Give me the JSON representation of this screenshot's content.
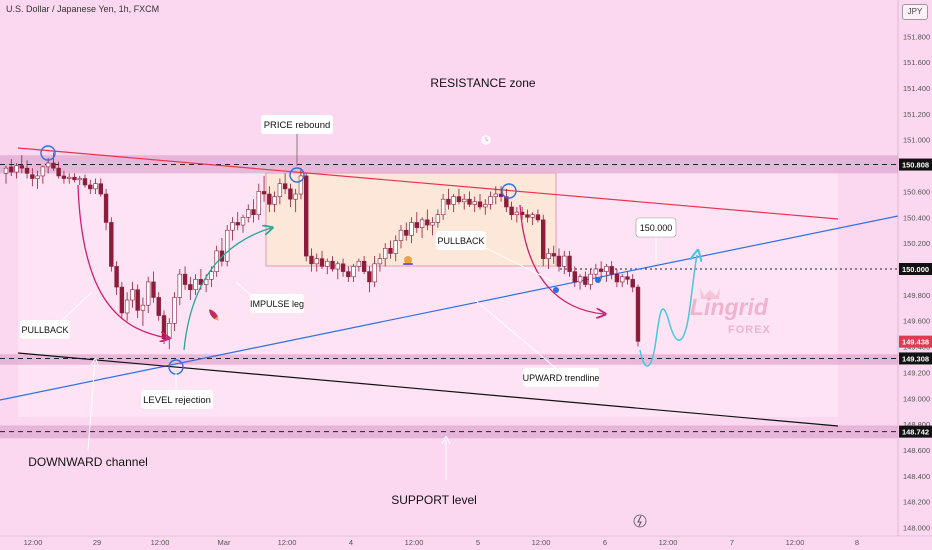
{
  "header": {
    "symbol": "U.S. Dollar / Japanese Yen, 1h, FXCM",
    "currency": "JPY"
  },
  "chart_data": {
    "type": "candlestick",
    "ylim": [
      147.95,
      152.05
    ],
    "y_ticks": [
      "151.800",
      "151.600",
      "151.400",
      "151.200",
      "151.000",
      "150.800",
      "150.600",
      "150.400",
      "150.200",
      "150.000",
      "149.800",
      "149.600",
      "149.400",
      "149.200",
      "149.000",
      "148.800",
      "148.600",
      "148.400",
      "148.200",
      "148.000"
    ],
    "x_ticks": [
      "12:00",
      "29",
      "12:00",
      "Mar",
      "12:00",
      "4",
      "12:00",
      "5",
      "12:00",
      "6",
      "12:00",
      "7",
      "12:00",
      "8"
    ],
    "price_tags": [
      {
        "label": "150.808",
        "value": 150.808,
        "color": "#111111"
      },
      {
        "label": "150.000",
        "value": 150.0,
        "color": "#111111"
      },
      {
        "label": "149.438",
        "value": 149.438,
        "color": "#e03a52"
      },
      {
        "label": "149.308",
        "value": 149.308,
        "color": "#111111"
      },
      {
        "label": "148.742",
        "value": 148.742,
        "color": "#111111"
      }
    ],
    "candles": [
      [
        150.74,
        150.8,
        150.66,
        150.78
      ],
      [
        150.79,
        150.85,
        150.72,
        150.75
      ],
      [
        150.75,
        150.82,
        150.7,
        150.8
      ],
      [
        150.8,
        150.88,
        150.74,
        150.78
      ],
      [
        150.78,
        150.84,
        150.7,
        150.74
      ],
      [
        150.73,
        150.78,
        150.64,
        150.7
      ],
      [
        150.7,
        150.76,
        150.62,
        150.72
      ],
      [
        150.72,
        150.8,
        150.66,
        150.79
      ],
      [
        150.79,
        150.86,
        150.74,
        150.82
      ],
      [
        150.82,
        150.9,
        150.76,
        150.78
      ],
      [
        150.78,
        150.83,
        150.7,
        150.72
      ],
      [
        150.72,
        150.76,
        150.66,
        150.7
      ],
      [
        150.7,
        150.74,
        150.66,
        150.71
      ],
      [
        150.71,
        150.74,
        150.67,
        150.69
      ],
      [
        150.69,
        150.72,
        150.65,
        150.7
      ],
      [
        150.7,
        150.73,
        150.63,
        150.65
      ],
      [
        150.65,
        150.69,
        150.58,
        150.62
      ],
      [
        150.62,
        150.7,
        150.58,
        150.66
      ],
      [
        150.66,
        150.7,
        150.56,
        150.58
      ],
      [
        150.58,
        150.62,
        150.3,
        150.36
      ],
      [
        150.36,
        150.4,
        149.98,
        150.02
      ],
      [
        150.02,
        150.06,
        149.8,
        149.86
      ],
      [
        149.86,
        149.9,
        149.62,
        149.66
      ],
      [
        149.66,
        149.82,
        149.6,
        149.76
      ],
      [
        149.76,
        149.9,
        149.7,
        149.84
      ],
      [
        149.84,
        149.88,
        149.62,
        149.68
      ],
      [
        149.68,
        149.78,
        149.56,
        149.72
      ],
      [
        149.72,
        149.94,
        149.66,
        149.9
      ],
      [
        149.9,
        149.98,
        149.74,
        149.78
      ],
      [
        149.78,
        149.82,
        149.6,
        149.64
      ],
      [
        149.64,
        149.68,
        149.42,
        149.46
      ],
      [
        149.46,
        149.62,
        149.38,
        149.58
      ],
      [
        149.58,
        149.82,
        149.52,
        149.78
      ],
      [
        149.78,
        150.0,
        149.72,
        149.96
      ],
      [
        149.96,
        150.02,
        149.84,
        149.88
      ],
      [
        149.88,
        149.94,
        149.76,
        149.84
      ],
      [
        149.84,
        149.96,
        149.8,
        149.92
      ],
      [
        149.92,
        150.0,
        149.84,
        149.88
      ],
      [
        149.88,
        149.96,
        149.82,
        149.92
      ],
      [
        149.92,
        150.02,
        149.86,
        149.98
      ],
      [
        149.98,
        150.18,
        149.94,
        150.14
      ],
      [
        150.14,
        150.24,
        150.02,
        150.06
      ],
      [
        150.06,
        150.34,
        150.02,
        150.3
      ],
      [
        150.3,
        150.4,
        150.22,
        150.36
      ],
      [
        150.36,
        150.44,
        150.3,
        150.34
      ],
      [
        150.34,
        150.42,
        150.28,
        150.4
      ],
      [
        150.4,
        150.5,
        150.36,
        150.46
      ],
      [
        150.46,
        150.54,
        150.36,
        150.42
      ],
      [
        150.42,
        150.66,
        150.38,
        150.6
      ],
      [
        150.6,
        150.72,
        150.52,
        150.58
      ],
      [
        150.58,
        150.64,
        150.44,
        150.5
      ],
      [
        150.5,
        150.6,
        150.44,
        150.56
      ],
      [
        150.56,
        150.7,
        150.5,
        150.66
      ],
      [
        150.66,
        150.74,
        150.58,
        150.62
      ],
      [
        150.62,
        150.66,
        150.48,
        150.54
      ],
      [
        150.54,
        150.62,
        150.44,
        150.58
      ],
      [
        150.58,
        150.78,
        150.54,
        150.72
      ],
      [
        150.72,
        150.74,
        150.06,
        150.1
      ],
      [
        150.1,
        150.16,
        149.98,
        150.04
      ],
      [
        150.04,
        150.12,
        149.98,
        150.08
      ],
      [
        150.08,
        150.14,
        150.0,
        150.02
      ],
      [
        150.02,
        150.08,
        149.96,
        150.06
      ],
      [
        150.06,
        150.1,
        149.98,
        150.0
      ],
      [
        150.0,
        150.06,
        149.92,
        150.04
      ],
      [
        150.04,
        150.08,
        149.94,
        149.98
      ],
      [
        149.98,
        150.02,
        149.9,
        149.94
      ],
      [
        149.94,
        150.04,
        149.9,
        150.02
      ],
      [
        150.02,
        150.08,
        149.98,
        150.06
      ],
      [
        150.06,
        150.1,
        149.96,
        149.98
      ],
      [
        149.98,
        150.02,
        149.82,
        149.9
      ],
      [
        149.9,
        150.1,
        149.86,
        150.04
      ],
      [
        150.04,
        150.12,
        149.98,
        150.08
      ],
      [
        150.08,
        150.2,
        150.02,
        150.16
      ],
      [
        150.16,
        150.22,
        150.08,
        150.12
      ],
      [
        150.12,
        150.26,
        150.06,
        150.22
      ],
      [
        150.22,
        150.34,
        150.16,
        150.3
      ],
      [
        150.3,
        150.36,
        150.22,
        150.26
      ],
      [
        150.26,
        150.4,
        150.2,
        150.36
      ],
      [
        150.36,
        150.44,
        150.28,
        150.32
      ],
      [
        150.32,
        150.4,
        150.24,
        150.38
      ],
      [
        150.38,
        150.46,
        150.3,
        150.34
      ],
      [
        150.34,
        150.4,
        150.26,
        150.36
      ],
      [
        150.36,
        150.46,
        150.32,
        150.42
      ],
      [
        150.42,
        150.58,
        150.38,
        150.54
      ],
      [
        150.54,
        150.62,
        150.46,
        150.5
      ],
      [
        150.5,
        150.58,
        150.44,
        150.56
      ],
      [
        150.56,
        150.62,
        150.5,
        150.52
      ],
      [
        150.52,
        150.58,
        150.46,
        150.54
      ],
      [
        150.54,
        150.6,
        150.48,
        150.5
      ],
      [
        150.5,
        150.56,
        150.44,
        150.52
      ],
      [
        150.52,
        150.58,
        150.46,
        150.48
      ],
      [
        150.48,
        150.54,
        150.42,
        150.5
      ],
      [
        150.5,
        150.6,
        150.46,
        150.56
      ],
      [
        150.56,
        150.64,
        150.5,
        150.58
      ],
      [
        150.58,
        150.64,
        150.52,
        150.56
      ],
      [
        150.56,
        150.62,
        150.44,
        150.48
      ],
      [
        150.48,
        150.52,
        150.38,
        150.42
      ],
      [
        150.42,
        150.48,
        150.36,
        150.44
      ],
      [
        150.44,
        150.48,
        150.38,
        150.42
      ],
      [
        150.42,
        150.46,
        150.36,
        150.4
      ],
      [
        150.4,
        150.44,
        150.34,
        150.42
      ],
      [
        150.42,
        150.46,
        150.36,
        150.38
      ],
      [
        150.38,
        150.42,
        150.02,
        150.08
      ],
      [
        150.08,
        150.16,
        150.0,
        150.12
      ],
      [
        150.12,
        150.18,
        150.04,
        150.1
      ],
      [
        150.1,
        150.16,
        149.98,
        150.02
      ],
      [
        150.02,
        150.14,
        149.96,
        150.1
      ],
      [
        150.1,
        150.14,
        149.94,
        149.98
      ],
      [
        149.98,
        150.02,
        149.86,
        149.9
      ],
      [
        149.9,
        149.96,
        149.84,
        149.94
      ],
      [
        149.94,
        149.98,
        149.86,
        149.88
      ],
      [
        149.88,
        150.0,
        149.84,
        149.96
      ],
      [
        149.96,
        150.04,
        149.9,
        150.0
      ],
      [
        150.0,
        150.06,
        149.92,
        149.98
      ],
      [
        149.98,
        150.04,
        149.9,
        150.02
      ],
      [
        150.02,
        150.06,
        149.92,
        149.96
      ],
      [
        149.96,
        150.0,
        149.86,
        149.9
      ],
      [
        149.9,
        149.96,
        149.86,
        149.94
      ],
      [
        149.94,
        149.98,
        149.88,
        149.92
      ],
      [
        149.92,
        149.96,
        149.82,
        149.86
      ],
      [
        149.86,
        149.88,
        149.4,
        149.44
      ]
    ],
    "resistance_zone": [
      150.74,
      150.88
    ],
    "support_zone_upper": [
      149.26,
      149.34
    ],
    "support_zone_lower": [
      148.69,
      148.79
    ]
  },
  "annotations": {
    "resistance_zone": "RESISTANCE zone",
    "price_rebound": "PRICE rebound",
    "pullback_right": "PULLBACK",
    "target_label": "150.000",
    "pullback_left": "PULLBACK",
    "impulse_leg": "IMPULSE leg",
    "upward_trendline": "UPWARD trendline",
    "level_rejection": "LEVEL rejection",
    "downward_channel": "DOWNWARD channel",
    "support_level": "SUPPORT level"
  },
  "watermark": {
    "brand": "Lingrid",
    "sub": "FOREX"
  },
  "colors": {
    "candle": "#8c1d3a",
    "descending_line": "#e8334e",
    "upward_line": "#2f6fe0",
    "channel_line": "#111111",
    "zone": "#e0aad2",
    "arrow_pink": "#d21c6e",
    "arrow_teal": "#2aa59a",
    "projection": "#46c6e0"
  }
}
